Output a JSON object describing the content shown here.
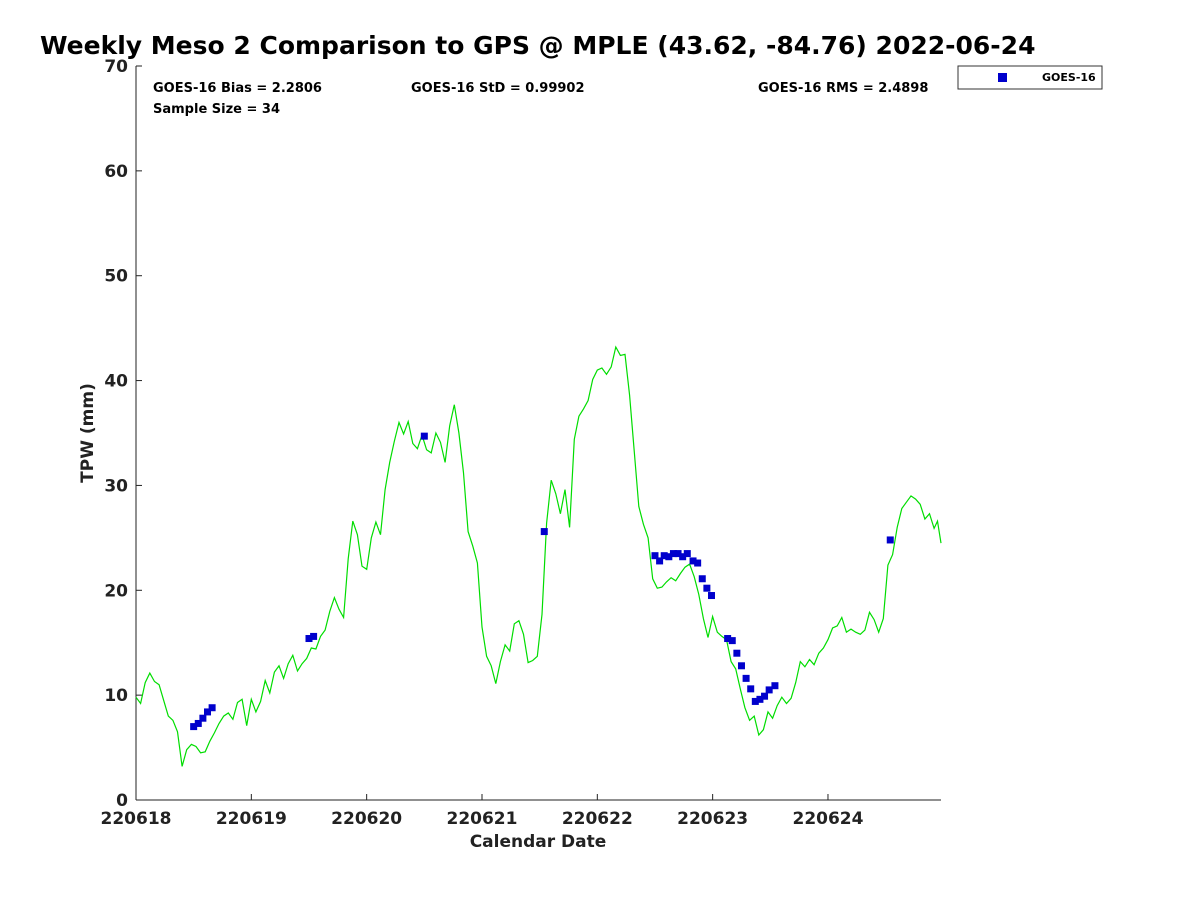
{
  "chart_data": {
    "type": "scatter",
    "title": "Weekly Meso 2 Comparison to GPS @ MPLE (43.62, -84.76) 2022-06-24",
    "xlabel": "Calendar Date",
    "ylabel": "TPW (mm)",
    "xlim": [
      0,
      6.98
    ],
    "ylim": [
      0,
      70
    ],
    "x_ticks": [
      0,
      1,
      2,
      3,
      4,
      5,
      6
    ],
    "x_tick_labels": [
      "220618",
      "220619",
      "220620",
      "220621",
      "220622",
      "220623",
      "220624"
    ],
    "y_ticks": [
      0,
      10,
      20,
      30,
      40,
      50,
      60,
      70
    ],
    "y_tick_labels": [
      "0",
      "10",
      "20",
      "30",
      "40",
      "50",
      "60",
      "70"
    ],
    "grid": false,
    "legend_position": "outside-top-right",
    "stats": {
      "bias": "GOES-16 Bias = 2.2806",
      "std": "GOES-16 StD = 0.99902",
      "rms": "GOES-16 RMS = 2.4898",
      "sample": "Sample Size = 34"
    },
    "series": [
      {
        "name": "GOES-16",
        "kind": "scatter",
        "color": "#0000cc",
        "marker": "square",
        "points": [
          [
            0.5,
            7.0
          ],
          [
            0.54,
            7.3
          ],
          [
            0.58,
            7.8
          ],
          [
            0.62,
            8.4
          ],
          [
            0.66,
            8.8
          ],
          [
            1.5,
            15.4
          ],
          [
            1.54,
            15.6
          ],
          [
            2.5,
            34.7
          ],
          [
            3.54,
            25.6
          ],
          [
            4.5,
            23.3
          ],
          [
            4.54,
            22.8
          ],
          [
            4.58,
            23.3
          ],
          [
            4.62,
            23.2
          ],
          [
            4.66,
            23.5
          ],
          [
            4.7,
            23.5
          ],
          [
            4.74,
            23.2
          ],
          [
            4.78,
            23.5
          ],
          [
            4.83,
            22.8
          ],
          [
            4.87,
            22.6
          ],
          [
            4.91,
            21.1
          ],
          [
            4.95,
            20.2
          ],
          [
            4.99,
            19.5
          ],
          [
            5.13,
            15.4
          ],
          [
            5.17,
            15.2
          ],
          [
            5.21,
            14.0
          ],
          [
            5.25,
            12.8
          ],
          [
            5.29,
            11.6
          ],
          [
            5.33,
            10.6
          ],
          [
            5.37,
            9.4
          ],
          [
            5.41,
            9.6
          ],
          [
            5.45,
            9.9
          ],
          [
            5.49,
            10.5
          ],
          [
            5.54,
            10.9
          ],
          [
            6.54,
            24.8
          ]
        ]
      },
      {
        "name": "",
        "kind": "line",
        "color": "#00dd00",
        "points": [
          [
            0.0,
            9.8
          ],
          [
            0.04,
            9.2
          ],
          [
            0.08,
            11.2
          ],
          [
            0.12,
            12.1
          ],
          [
            0.16,
            11.3
          ],
          [
            0.2,
            11.0
          ],
          [
            0.24,
            9.5
          ],
          [
            0.28,
            8.0
          ],
          [
            0.32,
            7.6
          ],
          [
            0.36,
            6.5
          ],
          [
            0.4,
            3.2
          ],
          [
            0.44,
            4.8
          ],
          [
            0.48,
            5.3
          ],
          [
            0.52,
            5.1
          ],
          [
            0.56,
            4.5
          ],
          [
            0.6,
            4.6
          ],
          [
            0.64,
            5.6
          ],
          [
            0.68,
            6.4
          ],
          [
            0.72,
            7.3
          ],
          [
            0.76,
            8.0
          ],
          [
            0.8,
            8.3
          ],
          [
            0.84,
            7.7
          ],
          [
            0.88,
            9.3
          ],
          [
            0.92,
            9.6
          ],
          [
            0.96,
            7.1
          ],
          [
            1.0,
            9.6
          ],
          [
            1.04,
            8.4
          ],
          [
            1.08,
            9.4
          ],
          [
            1.12,
            11.4
          ],
          [
            1.16,
            10.2
          ],
          [
            1.2,
            12.2
          ],
          [
            1.24,
            12.8
          ],
          [
            1.28,
            11.6
          ],
          [
            1.32,
            13.0
          ],
          [
            1.36,
            13.8
          ],
          [
            1.4,
            12.3
          ],
          [
            1.44,
            13.0
          ],
          [
            1.48,
            13.5
          ],
          [
            1.52,
            14.5
          ],
          [
            1.56,
            14.4
          ],
          [
            1.6,
            15.6
          ],
          [
            1.64,
            16.2
          ],
          [
            1.68,
            18.0
          ],
          [
            1.72,
            19.3
          ],
          [
            1.76,
            18.2
          ],
          [
            1.8,
            17.4
          ],
          [
            1.84,
            23.0
          ],
          [
            1.88,
            26.6
          ],
          [
            1.92,
            25.3
          ],
          [
            1.96,
            22.3
          ],
          [
            2.0,
            22.0
          ],
          [
            2.04,
            25.0
          ],
          [
            2.08,
            26.5
          ],
          [
            2.12,
            25.3
          ],
          [
            2.16,
            29.6
          ],
          [
            2.2,
            32.2
          ],
          [
            2.24,
            34.2
          ],
          [
            2.28,
            36.0
          ],
          [
            2.32,
            34.9
          ],
          [
            2.36,
            36.1
          ],
          [
            2.4,
            34.0
          ],
          [
            2.44,
            33.5
          ],
          [
            2.48,
            34.8
          ],
          [
            2.52,
            33.4
          ],
          [
            2.56,
            33.1
          ],
          [
            2.6,
            35.0
          ],
          [
            2.64,
            34.1
          ],
          [
            2.68,
            32.2
          ],
          [
            2.72,
            35.7
          ],
          [
            2.76,
            37.7
          ],
          [
            2.8,
            35.0
          ],
          [
            2.84,
            31.2
          ],
          [
            2.88,
            25.6
          ],
          [
            2.92,
            24.2
          ],
          [
            2.96,
            22.6
          ],
          [
            3.0,
            16.5
          ],
          [
            3.04,
            13.7
          ],
          [
            3.08,
            12.8
          ],
          [
            3.12,
            11.1
          ],
          [
            3.16,
            13.2
          ],
          [
            3.2,
            14.8
          ],
          [
            3.24,
            14.2
          ],
          [
            3.28,
            16.8
          ],
          [
            3.32,
            17.1
          ],
          [
            3.36,
            15.8
          ],
          [
            3.4,
            13.1
          ],
          [
            3.44,
            13.3
          ],
          [
            3.48,
            13.7
          ],
          [
            3.52,
            17.7
          ],
          [
            3.56,
            26.4
          ],
          [
            3.6,
            30.5
          ],
          [
            3.64,
            29.2
          ],
          [
            3.68,
            27.3
          ],
          [
            3.72,
            29.6
          ],
          [
            3.76,
            26.0
          ],
          [
            3.8,
            34.4
          ],
          [
            3.84,
            36.6
          ],
          [
            3.88,
            37.3
          ],
          [
            3.92,
            38.1
          ],
          [
            3.96,
            40.1
          ],
          [
            4.0,
            41.0
          ],
          [
            4.04,
            41.2
          ],
          [
            4.08,
            40.6
          ],
          [
            4.12,
            41.3
          ],
          [
            4.16,
            43.2
          ],
          [
            4.2,
            42.4
          ],
          [
            4.24,
            42.5
          ],
          [
            4.28,
            38.6
          ],
          [
            4.32,
            33.3
          ],
          [
            4.36,
            28.0
          ],
          [
            4.4,
            26.3
          ],
          [
            4.44,
            25.0
          ],
          [
            4.48,
            21.1
          ],
          [
            4.52,
            20.2
          ],
          [
            4.56,
            20.3
          ],
          [
            4.6,
            20.8
          ],
          [
            4.64,
            21.2
          ],
          [
            4.68,
            20.9
          ],
          [
            4.72,
            21.6
          ],
          [
            4.76,
            22.2
          ],
          [
            4.8,
            22.5
          ],
          [
            4.84,
            21.3
          ],
          [
            4.88,
            19.6
          ],
          [
            4.92,
            17.3
          ],
          [
            4.96,
            15.5
          ],
          [
            5.0,
            17.5
          ],
          [
            5.04,
            16.0
          ],
          [
            5.08,
            15.6
          ],
          [
            5.12,
            15.3
          ],
          [
            5.16,
            13.2
          ],
          [
            5.2,
            12.5
          ],
          [
            5.24,
            10.6
          ],
          [
            5.28,
            8.8
          ],
          [
            5.32,
            7.6
          ],
          [
            5.36,
            8.0
          ],
          [
            5.4,
            6.2
          ],
          [
            5.44,
            6.7
          ],
          [
            5.48,
            8.4
          ],
          [
            5.52,
            7.8
          ],
          [
            5.56,
            9.0
          ],
          [
            5.6,
            9.8
          ],
          [
            5.64,
            9.2
          ],
          [
            5.68,
            9.7
          ],
          [
            5.72,
            11.2
          ],
          [
            5.76,
            13.2
          ],
          [
            5.8,
            12.7
          ],
          [
            5.84,
            13.4
          ],
          [
            5.88,
            12.9
          ],
          [
            5.92,
            14.0
          ],
          [
            5.96,
            14.5
          ],
          [
            6.0,
            15.3
          ],
          [
            6.04,
            16.4
          ],
          [
            6.08,
            16.6
          ],
          [
            6.12,
            17.4
          ],
          [
            6.16,
            16.0
          ],
          [
            6.2,
            16.3
          ],
          [
            6.24,
            16.0
          ],
          [
            6.28,
            15.8
          ],
          [
            6.32,
            16.2
          ],
          [
            6.36,
            17.9
          ],
          [
            6.4,
            17.2
          ],
          [
            6.44,
            16.0
          ],
          [
            6.48,
            17.3
          ],
          [
            6.52,
            22.4
          ],
          [
            6.56,
            23.4
          ],
          [
            6.6,
            26.0
          ],
          [
            6.64,
            27.8
          ],
          [
            6.68,
            28.4
          ],
          [
            6.72,
            29.0
          ],
          [
            6.76,
            28.7
          ],
          [
            6.8,
            28.2
          ],
          [
            6.84,
            26.8
          ],
          [
            6.88,
            27.3
          ],
          [
            6.92,
            25.9
          ],
          [
            6.95,
            26.6
          ],
          [
            6.98,
            24.5
          ]
        ]
      }
    ]
  }
}
